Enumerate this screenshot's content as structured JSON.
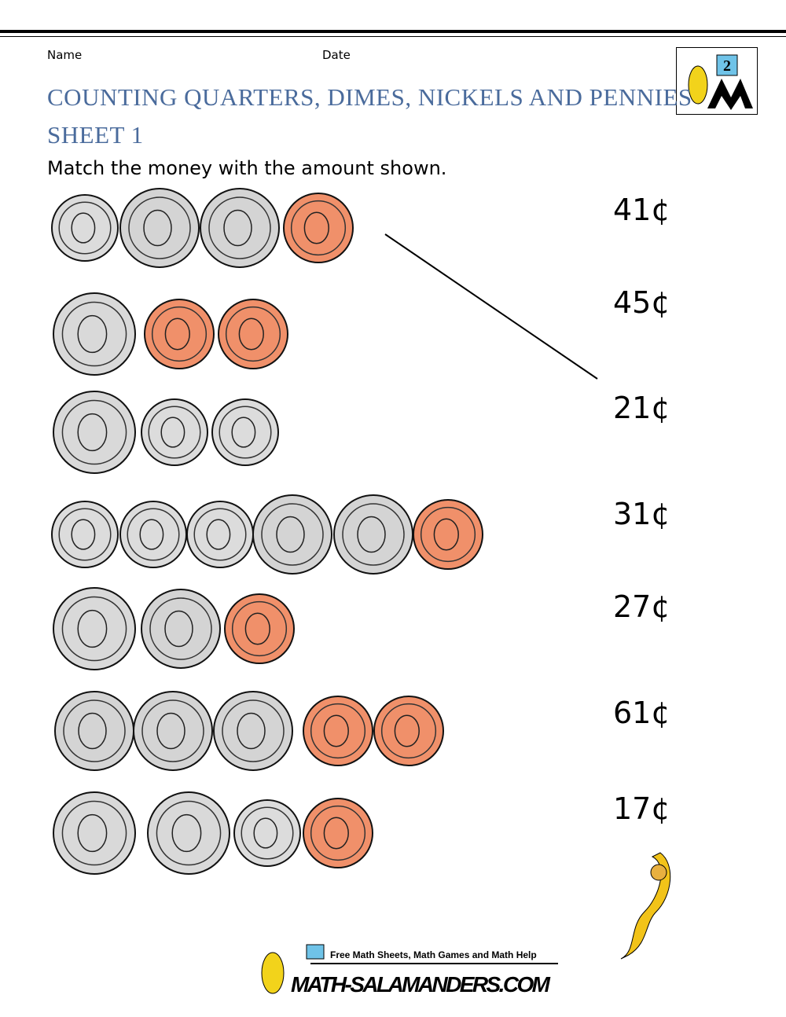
{
  "header": {
    "name_label": "Name",
    "date_label": "Date",
    "logo_grade": "2",
    "title": "COUNTING QUARTERS, DIMES, NICKELS AND PENNIES",
    "subtitle": "SHEET 1",
    "instruction": "Match the money with the amount shown."
  },
  "amounts": [
    "41¢",
    "45¢",
    "21¢",
    "31¢",
    "27¢",
    "61¢",
    "17¢"
  ],
  "footer": {
    "tagline": "Free Math Sheets, Math Games and Math Help",
    "site": "MATH-SALAMANDERS.COM"
  }
}
